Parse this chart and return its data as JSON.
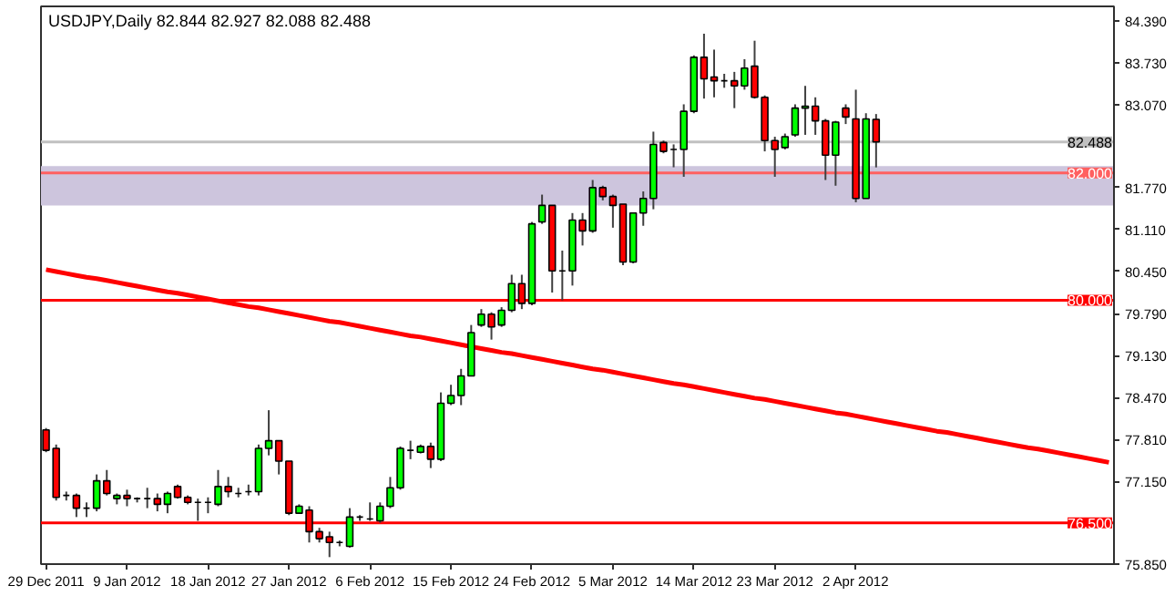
{
  "chart_data": {
    "type": "candlestick",
    "title": "USDJPY,Daily  82.844 82.927 82.088 82.488",
    "categories": [
      "29 Dec 2011",
      null,
      null,
      null,
      null,
      null,
      null,
      null,
      "9 Jan 2012",
      null,
      null,
      null,
      null,
      null,
      null,
      null,
      "18 Jan 2012",
      null,
      null,
      null,
      null,
      null,
      null,
      null,
      "27 Jan 2012",
      null,
      null,
      null,
      null,
      null,
      null,
      null,
      "6 Feb 2012",
      null,
      null,
      null,
      null,
      null,
      null,
      null,
      "15 Feb 2012",
      null,
      null,
      null,
      null,
      null,
      null,
      null,
      "24 Feb 2012",
      null,
      null,
      null,
      null,
      null,
      null,
      null,
      "5 Mar 2012",
      null,
      null,
      null,
      null,
      null,
      null,
      null,
      "14 Mar 2012",
      null,
      null,
      null,
      null,
      null,
      null,
      null,
      "23 Mar 2012",
      null,
      null,
      null,
      null,
      null,
      null,
      null,
      "2 Apr 2012",
      null,
      null,
      null,
      null,
      null,
      null,
      null,
      null,
      null,
      null,
      null,
      null,
      null,
      null,
      null,
      null,
      null,
      null,
      null,
      null,
      null,
      null,
      null,
      null,
      null
    ],
    "ohlc": [
      [
        77.96,
        77.99,
        77.61,
        77.64
      ],
      [
        77.67,
        77.73,
        76.85,
        76.9
      ],
      [
        76.93,
        76.99,
        76.85,
        76.93
      ],
      [
        76.93,
        76.96,
        76.59,
        76.73
      ],
      [
        76.73,
        76.82,
        76.59,
        76.73
      ],
      [
        76.73,
        77.26,
        76.68,
        77.16
      ],
      [
        77.16,
        77.33,
        76.93,
        76.96
      ],
      [
        76.88,
        76.96,
        76.79,
        76.93
      ],
      [
        76.93,
        77.02,
        76.76,
        76.88
      ],
      [
        76.88,
        76.9,
        76.82,
        76.88
      ],
      [
        76.88,
        77.05,
        76.73,
        76.88
      ],
      [
        76.88,
        76.96,
        76.68,
        76.79
      ],
      [
        76.79,
        76.99,
        76.65,
        76.96
      ],
      [
        77.07,
        77.1,
        76.88,
        76.9
      ],
      [
        76.9,
        76.93,
        76.79,
        76.82
      ],
      [
        76.82,
        76.88,
        76.53,
        76.82
      ],
      [
        76.82,
        76.9,
        76.65,
        76.82
      ],
      [
        76.79,
        77.33,
        76.76,
        77.07
      ],
      [
        77.07,
        77.22,
        76.9,
        76.99
      ],
      [
        76.96,
        77.05,
        76.9,
        76.96
      ],
      [
        76.99,
        77.1,
        76.93,
        76.99
      ],
      [
        76.99,
        77.73,
        76.93,
        77.67
      ],
      [
        77.67,
        78.27,
        77.56,
        77.79
      ],
      [
        77.79,
        77.79,
        77.26,
        77.47
      ],
      [
        77.47,
        77.47,
        76.62,
        76.65
      ],
      [
        76.65,
        76.79,
        76.65,
        76.76
      ],
      [
        76.7,
        76.76,
        76.19,
        76.36
      ],
      [
        76.36,
        76.42,
        76.19,
        76.25
      ],
      [
        76.28,
        76.36,
        75.96,
        76.19
      ],
      [
        76.19,
        76.22,
        76.13,
        76.19
      ],
      [
        76.13,
        76.73,
        76.11,
        76.59
      ],
      [
        76.59,
        76.62,
        76.53,
        76.59
      ],
      [
        76.56,
        76.82,
        76.53,
        76.56
      ],
      [
        76.53,
        76.82,
        76.5,
        76.76
      ],
      [
        76.76,
        77.22,
        76.73,
        77.05
      ],
      [
        77.05,
        77.7,
        77.02,
        77.67
      ],
      [
        77.64,
        77.79,
        77.5,
        77.64
      ],
      [
        77.61,
        77.73,
        77.59,
        77.7
      ],
      [
        77.7,
        77.76,
        77.36,
        77.5
      ],
      [
        77.5,
        78.55,
        77.47,
        78.38
      ],
      [
        78.38,
        78.67,
        78.35,
        78.5
      ],
      [
        78.5,
        78.92,
        78.35,
        78.81
      ],
      [
        78.81,
        79.61,
        78.81,
        79.49
      ],
      [
        79.61,
        79.86,
        79.58,
        79.78
      ],
      [
        79.78,
        79.81,
        79.38,
        79.58
      ],
      [
        79.61,
        79.89,
        79.58,
        79.84
      ],
      [
        79.84,
        80.4,
        79.81,
        80.26
      ],
      [
        80.26,
        80.4,
        79.86,
        79.95
      ],
      [
        79.95,
        81.23,
        79.92,
        81.2
      ],
      [
        81.23,
        81.66,
        81.2,
        81.49
      ],
      [
        81.49,
        81.49,
        80.12,
        80.46
      ],
      [
        80.46,
        80.78,
        80.0,
        80.46
      ],
      [
        80.46,
        81.37,
        80.23,
        81.26
      ],
      [
        81.26,
        81.37,
        80.86,
        81.09
      ],
      [
        81.09,
        81.89,
        81.06,
        81.77
      ],
      [
        81.77,
        81.8,
        81.57,
        81.63
      ],
      [
        81.63,
        81.66,
        81.14,
        81.49
      ],
      [
        81.51,
        81.51,
        80.55,
        80.6
      ],
      [
        80.6,
        81.37,
        80.58,
        81.37
      ],
      [
        81.37,
        81.71,
        81.17,
        81.6
      ],
      [
        81.6,
        82.65,
        81.43,
        82.45
      ],
      [
        82.48,
        82.51,
        82.31,
        82.34
      ],
      [
        82.37,
        82.45,
        82.09,
        82.37
      ],
      [
        82.37,
        83.08,
        81.94,
        82.97
      ],
      [
        82.97,
        83.85,
        82.94,
        83.82
      ],
      [
        83.82,
        84.19,
        83.17,
        83.48
      ],
      [
        83.51,
        83.94,
        83.19,
        83.45
      ],
      [
        83.45,
        83.56,
        83.34,
        83.45
      ],
      [
        83.45,
        83.59,
        83.02,
        83.37
      ],
      [
        83.37,
        83.79,
        83.31,
        83.65
      ],
      [
        83.68,
        84.08,
        83.17,
        83.19
      ],
      [
        83.19,
        83.22,
        82.34,
        82.51
      ],
      [
        82.51,
        82.57,
        81.94,
        82.37
      ],
      [
        82.4,
        82.62,
        82.37,
        82.57
      ],
      [
        82.6,
        83.08,
        82.57,
        83.02
      ],
      [
        83.02,
        83.37,
        82.6,
        83.05
      ],
      [
        83.05,
        83.19,
        82.6,
        82.82
      ],
      [
        82.82,
        82.85,
        81.89,
        82.28
      ],
      [
        82.28,
        82.82,
        81.8,
        82.8
      ],
      [
        83.02,
        83.08,
        82.77,
        82.88
      ],
      [
        82.85,
        83.31,
        81.54,
        81.6
      ],
      [
        81.6,
        82.94,
        81.6,
        82.85
      ],
      [
        82.844,
        82.927,
        82.088,
        82.488
      ],
      null,
      null,
      null,
      null,
      null,
      null,
      null,
      null,
      null,
      null,
      null,
      null,
      null,
      null,
      null,
      null,
      null,
      null,
      null,
      null,
      null,
      null,
      null
    ],
    "series": [
      {
        "type": "line",
        "color": "#ff0000",
        "values": [
          80.48,
          80.45,
          80.42,
          80.39,
          80.36,
          80.34,
          80.31,
          80.28,
          80.25,
          80.22,
          80.19,
          80.16,
          80.13,
          80.11,
          80.08,
          80.05,
          80.02,
          79.99,
          79.96,
          79.93,
          79.9,
          79.88,
          79.85,
          79.82,
          79.79,
          79.76,
          79.73,
          79.7,
          79.67,
          79.65,
          79.62,
          79.59,
          79.56,
          79.53,
          79.5,
          79.47,
          79.44,
          79.42,
          79.39,
          79.36,
          79.33,
          79.3,
          79.27,
          79.24,
          79.21,
          79.18,
          79.16,
          79.13,
          79.1,
          79.07,
          79.04,
          79.01,
          78.98,
          78.95,
          78.92,
          78.9,
          78.87,
          78.84,
          78.81,
          78.78,
          78.75,
          78.72,
          78.69,
          78.67,
          78.64,
          78.61,
          78.58,
          78.55,
          78.52,
          78.49,
          78.46,
          78.44,
          78.41,
          78.38,
          78.35,
          78.32,
          78.29,
          78.26,
          78.23,
          78.21,
          78.18,
          78.15,
          78.12,
          78.09,
          78.06,
          78.03,
          78.0,
          77.97,
          77.94,
          77.92,
          77.89,
          77.86,
          77.83,
          77.8,
          77.77,
          77.74,
          77.71,
          77.68,
          77.66,
          77.63,
          77.6,
          77.57,
          77.54,
          77.51,
          77.48,
          77.45
        ]
      }
    ],
    "ylim": [
      75.85,
      84.62
    ],
    "yticks": [
      {
        "value": 75.85,
        "label": "75.850"
      },
      {
        "value": 77.15,
        "label": "77.150"
      },
      {
        "value": 77.81,
        "label": "77.810"
      },
      {
        "value": 78.47,
        "label": "78.470"
      },
      {
        "value": 79.13,
        "label": "79.130"
      },
      {
        "value": 79.79,
        "label": "79.790"
      },
      {
        "value": 80.45,
        "label": "80.450"
      },
      {
        "value": 81.11,
        "label": "81.110"
      },
      {
        "value": 81.77,
        "label": "81.770"
      },
      {
        "value": 83.07,
        "label": "83.070"
      },
      {
        "value": 83.73,
        "label": "83.730"
      },
      {
        "value": 84.39,
        "label": "84.390"
      }
    ],
    "ref_lines": [
      {
        "axis": "y",
        "value": 82.488,
        "label": "82.488",
        "color": "#c0c0c0"
      },
      {
        "axis": "y",
        "value": 82.0,
        "label": "82.000",
        "color": "#ff6060"
      },
      {
        "axis": "y",
        "value": 80.0,
        "label": "80.000",
        "color": "#ff0000"
      },
      {
        "axis": "y",
        "value": 76.5,
        "label": "76.500",
        "color": "#ff0000"
      }
    ],
    "bands": [
      {
        "axis": "y",
        "from": 81.49,
        "to": 82.11,
        "color": "#cdc5dd"
      }
    ]
  }
}
